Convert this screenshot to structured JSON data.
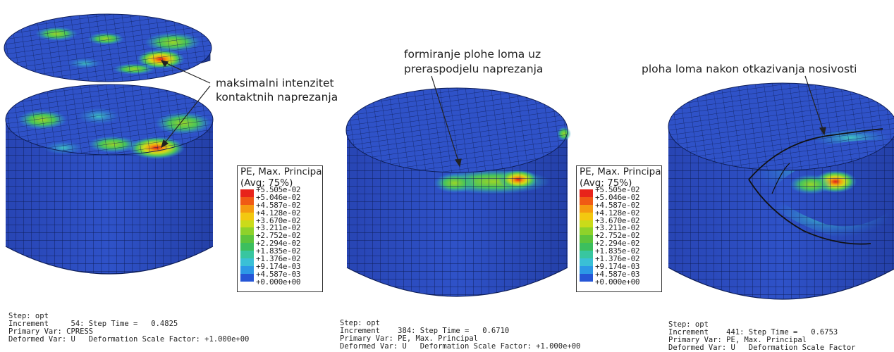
{
  "annotations": {
    "left_1": "maksimalni intenzitet",
    "left_2": "kontaktnih naprezanja",
    "mid_1": "formiranje plohe loma uz",
    "mid_2": "preraspodjelu naprezanja",
    "right_1": "ploha loma nakon otkazivanja nosivosti"
  },
  "panels": [
    {
      "step": "Step: opt",
      "increment": "Increment     54: Step Time =   0.4825",
      "primary": "Primary Var: CPRESS",
      "deformed": "Deformed Var: U   Deformation Scale Factor: +1.000e+00"
    },
    {
      "step": "Step: opt",
      "increment": "Increment    384: Step Time =   0.6710",
      "primary": "Primary Var: PE, Max. Principal",
      "deformed": "Deformed Var: U   Deformation Scale Factor: +1.000e+00"
    },
    {
      "step": "Step: opt",
      "increment": "Increment    441: Step Time =   0.6753",
      "primary": "Primary Var: PE, Max. Principal",
      "deformed": "Deformed Var: U   Deformation Scale Factor"
    }
  ],
  "legend": {
    "title_1": "PE, Max. Principa",
    "title_2": "(Avg: 75%)",
    "values": [
      "+5.505e-02",
      "+5.046e-02",
      "+4.587e-02",
      "+4.128e-02",
      "+3.670e-02",
      "+3.211e-02",
      "+2.752e-02",
      "+2.294e-02",
      "+1.835e-02",
      "+1.376e-02",
      "+9.174e-03",
      "+4.587e-03",
      "+0.000e+00"
    ],
    "colors": [
      "#e8231a",
      "#f05a14",
      "#f59a10",
      "#f3c810",
      "#cadb1a",
      "#8ed22a",
      "#5cc43c",
      "#3cbf5e",
      "#38c6a0",
      "#3ac0d6",
      "#2c98e6",
      "#2556d6",
      "#1f3aa8"
    ]
  }
}
